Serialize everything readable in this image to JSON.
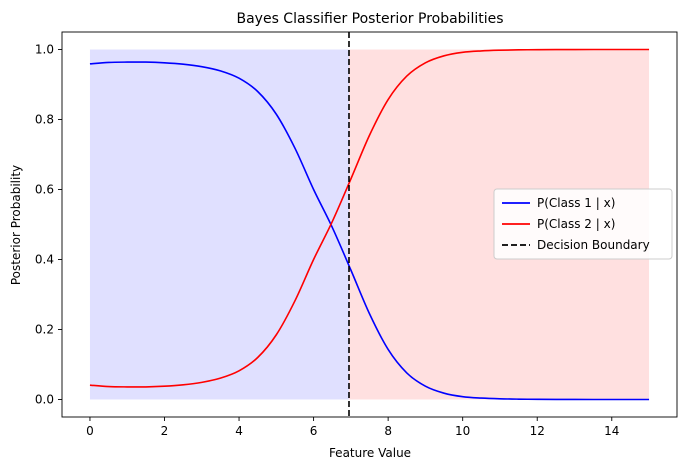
{
  "chart_data": {
    "type": "line",
    "title": "Bayes Classifier Posterior Probabilities",
    "xlabel": "Feature Value",
    "ylabel": "Posterior Probability",
    "xlim": [
      -0.75,
      15.75
    ],
    "ylim": [
      -0.05,
      1.05
    ],
    "xticks": [
      0,
      2,
      4,
      6,
      8,
      10,
      12,
      14
    ],
    "yticks": [
      0.0,
      0.2,
      0.4,
      0.6,
      0.8,
      1.0
    ],
    "xtick_labels": [
      "0",
      "2",
      "4",
      "6",
      "8",
      "10",
      "12",
      "14"
    ],
    "ytick_labels": [
      "0.0",
      "0.2",
      "0.4",
      "0.6",
      "0.8",
      "1.0"
    ],
    "grid": false,
    "legend_position": "center-right",
    "decision_boundary": 6.95,
    "regions": [
      {
        "x_start": 0,
        "x_end": 6.95,
        "color": "#0000ff",
        "opacity": 0.12
      },
      {
        "x_start": 6.95,
        "x_end": 15,
        "color": "#ff0000",
        "opacity": 0.12
      }
    ],
    "x": [
      0,
      0.5,
      1,
      1.5,
      2,
      2.5,
      3,
      3.5,
      4,
      4.5,
      5,
      5.5,
      6,
      6.5,
      7,
      7.5,
      8,
      8.5,
      9,
      9.5,
      10,
      10.5,
      11,
      11.5,
      12,
      12.5,
      13,
      13.5,
      14,
      14.5,
      15
    ],
    "series": [
      {
        "name": "P(Class 1 | x)",
        "color": "#0000ff",
        "style": "solid",
        "values": [
          0.959,
          0.963,
          0.964,
          0.964,
          0.962,
          0.958,
          0.951,
          0.939,
          0.918,
          0.88,
          0.815,
          0.718,
          0.6,
          0.492,
          0.37,
          0.245,
          0.143,
          0.076,
          0.038,
          0.018,
          0.008,
          0.004,
          0.002,
          0.001,
          0.0005,
          0.0002,
          0.0001,
          0.0,
          0.0,
          0.0,
          0.0
        ]
      },
      {
        "name": "P(Class 2 | x)",
        "color": "#ff0000",
        "style": "solid",
        "values": [
          0.041,
          0.037,
          0.036,
          0.036,
          0.038,
          0.042,
          0.049,
          0.061,
          0.082,
          0.12,
          0.185,
          0.282,
          0.4,
          0.508,
          0.63,
          0.755,
          0.857,
          0.924,
          0.962,
          0.982,
          0.992,
          0.996,
          0.998,
          0.999,
          0.9995,
          0.9998,
          0.9999,
          1.0,
          1.0,
          1.0,
          1.0
        ]
      }
    ],
    "legend": [
      {
        "label": "P(Class 1 | x)",
        "color": "#0000ff",
        "style": "solid"
      },
      {
        "label": "P(Class 2 | x)",
        "color": "#ff0000",
        "style": "solid"
      },
      {
        "label": "Decision Boundary",
        "color": "#000000",
        "style": "dashed"
      }
    ]
  }
}
